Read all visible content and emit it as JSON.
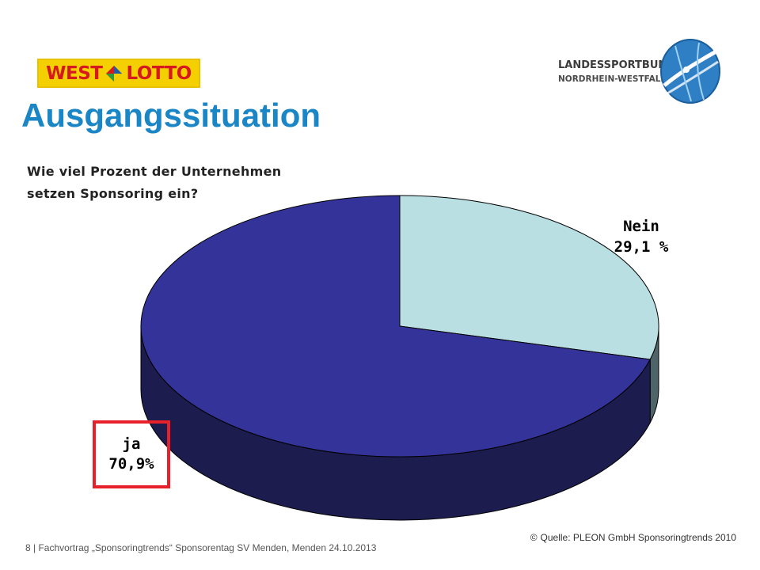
{
  "header": {
    "logo_left": {
      "part1": "WEST",
      "part2": "LOTTO"
    },
    "logo_right": {
      "name": "LANDESSPORTBUND",
      "subname": "NORDRHEIN-WESTFALEN"
    }
  },
  "slide": {
    "title": "Ausgangssituation",
    "question": "Wie viel Prozent der Unternehmen\nsetzen Sponsoring ein?"
  },
  "chart_data": {
    "type": "pie",
    "title": "",
    "style": "3d",
    "categories": [
      "Nein",
      "ja"
    ],
    "values": [
      29.1,
      70.9
    ],
    "value_labels": [
      "29,1 %",
      "70,9%"
    ],
    "colors": [
      "#b9dfe3",
      "#343399"
    ],
    "side_colors": [
      "#4f6468",
      "#1c1c4f"
    ],
    "highlighted_category": "ja",
    "highlight_color": "#e8202a"
  },
  "footer": {
    "text": "8 | Fachvortrag „Sponsoringtrends“ Sponsorentag SV Menden, Menden 24.10.2013",
    "source_icon": "copyright-icon",
    "source": "Quelle:  PLEON GmbH Sponsoringtrends 2010"
  },
  "colors": {
    "title": "#1b86c6",
    "westlotto_bg": "#f5d000",
    "westlotto_text": "#d6191f"
  }
}
